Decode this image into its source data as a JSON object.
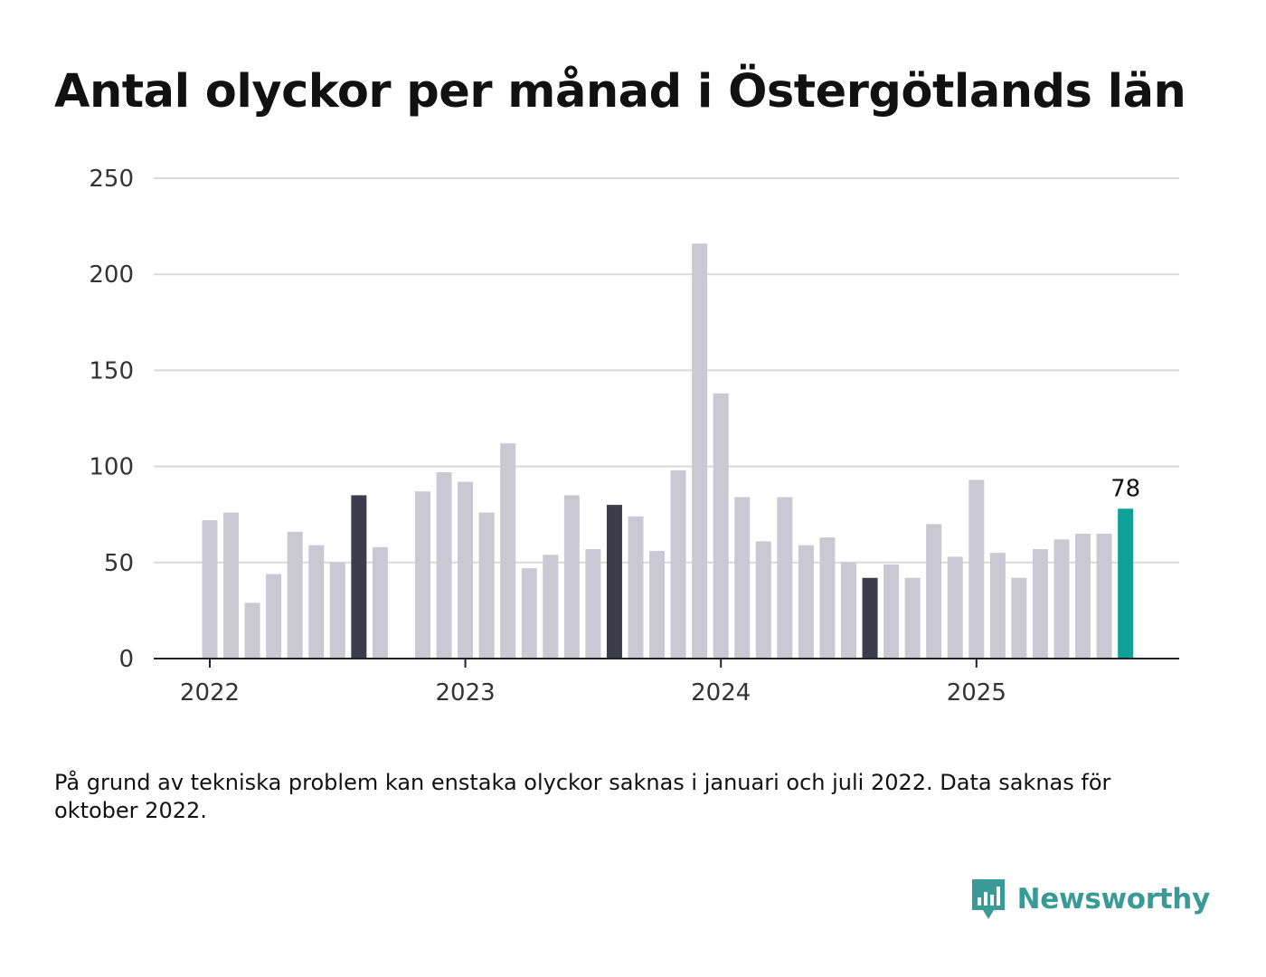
{
  "chart_data": {
    "type": "bar",
    "title": "Antal olyckor per månad i Östergötlands län",
    "xlabel": "",
    "ylabel": "",
    "ylim": [
      0,
      250
    ],
    "y_ticks": [
      "0",
      "50",
      "100",
      "150",
      "200",
      "250"
    ],
    "x_ticks": [
      "2022",
      "2023",
      "2024",
      "2025"
    ],
    "grid": true,
    "categories": [
      "2022-01",
      "2022-02",
      "2022-03",
      "2022-04",
      "2022-05",
      "2022-06",
      "2022-07",
      "2022-08",
      "2022-09",
      "2022-10",
      "2022-11",
      "2022-12",
      "2023-01",
      "2023-02",
      "2023-03",
      "2023-04",
      "2023-05",
      "2023-06",
      "2023-07",
      "2023-08",
      "2023-09",
      "2023-10",
      "2023-11",
      "2023-12",
      "2024-01",
      "2024-02",
      "2024-03",
      "2024-04",
      "2024-05",
      "2024-06",
      "2024-07",
      "2024-08",
      "2024-09",
      "2024-10",
      "2024-11",
      "2024-12",
      "2025-01",
      "2025-02",
      "2025-03",
      "2025-04",
      "2025-05",
      "2025-06",
      "2025-07",
      "2025-08"
    ],
    "values": [
      72,
      76,
      29,
      44,
      66,
      59,
      50,
      85,
      58,
      null,
      87,
      97,
      92,
      76,
      112,
      47,
      54,
      85,
      57,
      80,
      74,
      56,
      98,
      216,
      138,
      84,
      61,
      84,
      59,
      63,
      50,
      42,
      49,
      42,
      70,
      53,
      93,
      55,
      42,
      57,
      62,
      65,
      65,
      78
    ],
    "highlighted": {
      "2022-08": "#3d3c4c",
      "2023-08": "#3d3c4c",
      "2024-08": "#3d3c4c",
      "2025-08": "#0fa097"
    },
    "default_color": "#c9c8d3",
    "annotations": [
      {
        "category": "2025-08",
        "text": "78"
      }
    ]
  },
  "note": "På grund av tekniska problem kan enstaka olyckor saknas i januari och juli 2022. Data saknas för oktober 2022.",
  "brand": {
    "name": "Newsworthy",
    "icon": "newsworthy-logo-icon",
    "color": "#3a9a95"
  },
  "colors": {
    "grid": "#d9d9d9",
    "axis": "#222222",
    "tick_text": "#333333"
  }
}
